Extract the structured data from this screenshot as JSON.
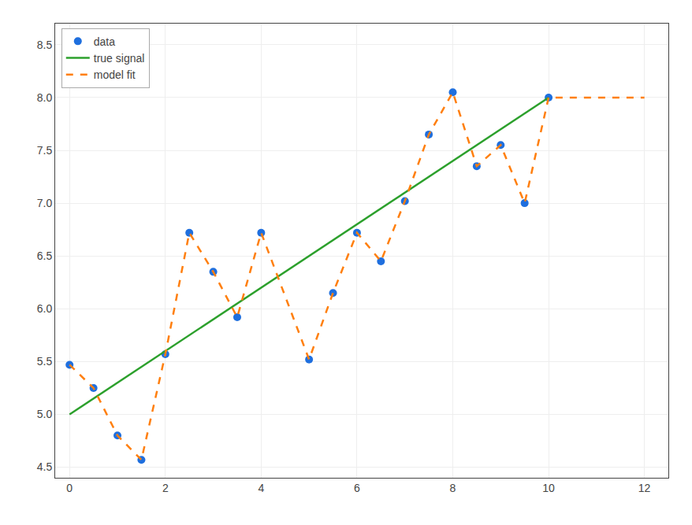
{
  "chart_data": {
    "type": "line",
    "series": [
      {
        "name": "data",
        "type": "scatter",
        "marker": "circle",
        "color": "#1f6fde",
        "x": [
          0,
          0.5,
          1.0,
          1.5,
          2.0,
          2.5,
          3.0,
          3.5,
          4.0,
          5.0,
          5.5,
          6.0,
          6.5,
          7.0,
          7.5,
          8.0,
          8.5,
          9.0,
          9.5,
          10.0
        ],
        "values": [
          5.47,
          5.25,
          4.8,
          4.57,
          5.57,
          6.72,
          6.35,
          5.92,
          6.72,
          5.52,
          6.15,
          6.72,
          6.45,
          7.02,
          7.65,
          8.05,
          7.35,
          7.55,
          7.0,
          8.0
        ]
      },
      {
        "name": "true signal",
        "type": "line",
        "line_style": "solid",
        "color": "#2ca02c",
        "x": [
          0,
          10
        ],
        "values": [
          5.0,
          8.0
        ]
      },
      {
        "name": "model fit",
        "type": "line",
        "line_style": "dashed",
        "color": "#ff7f0e",
        "x": [
          0,
          0.5,
          1.0,
          1.5,
          2.0,
          2.5,
          3.0,
          3.5,
          4.0,
          5.0,
          5.5,
          6.0,
          6.5,
          7.0,
          7.5,
          8.0,
          8.5,
          9.0,
          9.5,
          10.0,
          12.0
        ],
        "values": [
          5.47,
          5.25,
          4.8,
          4.57,
          5.57,
          6.72,
          6.35,
          5.92,
          6.72,
          5.52,
          6.15,
          6.72,
          6.45,
          7.02,
          7.65,
          8.05,
          7.35,
          7.55,
          7.0,
          8.0,
          8.0
        ]
      }
    ],
    "xlim": [
      -0.3,
      12.5
    ],
    "ylim": [
      4.4,
      8.7
    ],
    "xticks": [
      0,
      2,
      4,
      6,
      8,
      10,
      12
    ],
    "yticks": [
      4.5,
      {
        "value": 5.0,
        "label": "5.0"
      },
      5.5,
      {
        "value": 6.0,
        "label": "6.0"
      },
      6.5,
      {
        "value": 7.0,
        "label": "7.0"
      },
      7.5,
      {
        "value": 8.0,
        "label": "8.0"
      },
      8.5
    ],
    "grid": true,
    "legend": "upper left"
  }
}
